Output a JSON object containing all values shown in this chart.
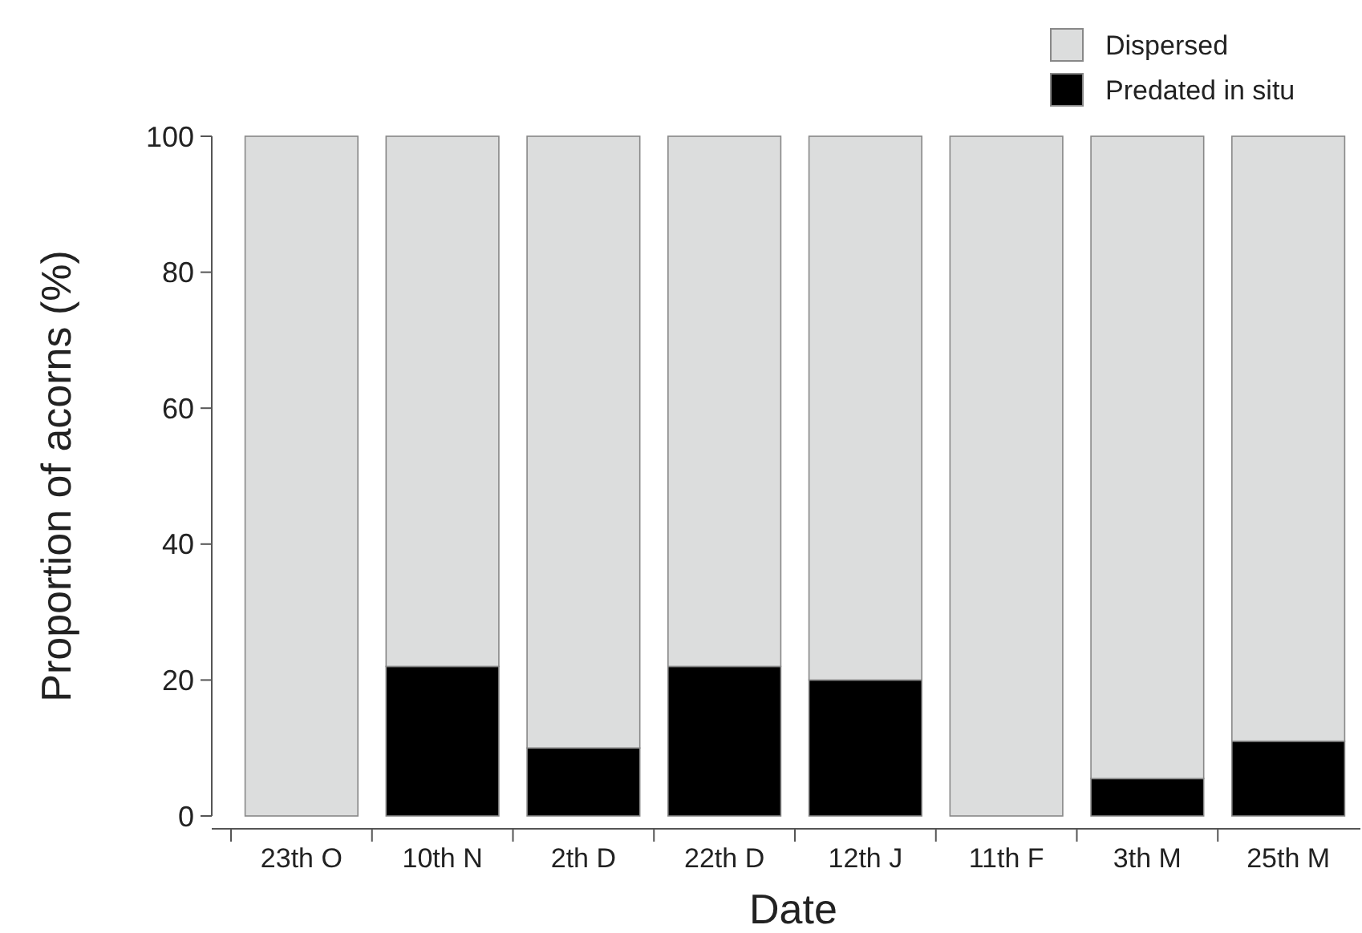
{
  "chart_data": {
    "type": "bar",
    "stacked": true,
    "xlabel": "Date",
    "ylabel": "Proportion of acorns (%)",
    "categories": [
      "23th O",
      "10th N",
      "2th D",
      "22th D",
      "12th J",
      "11th F",
      "3th M",
      "25th M"
    ],
    "series": [
      {
        "name": "Predated in situ",
        "color": "#000000",
        "values": [
          0,
          22,
          10,
          22,
          20,
          0,
          5.5,
          11
        ]
      },
      {
        "name": "Dispersed",
        "color": "#dcdddd",
        "values": [
          100,
          78,
          90,
          78,
          80,
          100,
          94.5,
          89
        ]
      }
    ],
    "ylim": [
      0,
      100
    ],
    "yticks": [
      0,
      20,
      40,
      60,
      80,
      100
    ],
    "legend": "top right"
  }
}
